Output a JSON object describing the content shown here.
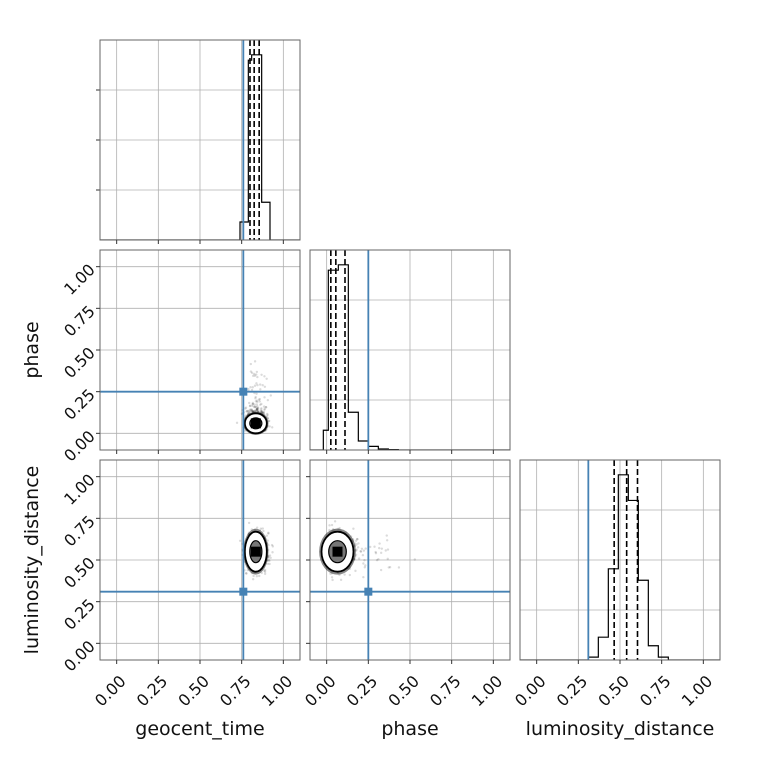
{
  "chart_data": {
    "type": "corner",
    "parameters": [
      "geocent_time",
      "phase",
      "luminosity_distance"
    ],
    "axis_labels": {
      "geocent_time": "geocent_time",
      "phase": "phase",
      "luminosity_distance": "luminosity_distance"
    },
    "range": [
      -0.1,
      1.1
    ],
    "ticks": [
      0.0,
      0.25,
      0.5,
      0.75,
      1.0
    ],
    "tick_labels": [
      "0.00",
      "0.25",
      "0.50",
      "0.75",
      "1.00"
    ],
    "truths": {
      "geocent_time": 0.76,
      "phase": 0.25,
      "luminosity_distance": 0.31
    },
    "quantiles": {
      "geocent_time": [
        0.8,
        0.825,
        0.855
      ],
      "phase": [
        0.025,
        0.055,
        0.11
      ],
      "luminosity_distance": [
        0.465,
        0.54,
        0.605
      ]
    },
    "histograms": {
      "geocent_time": {
        "edges": [
          -0.1,
          0.02,
          0.14,
          0.26,
          0.38,
          0.5,
          0.62,
          0.74,
          0.79,
          0.81,
          0.87,
          0.92,
          0.98,
          1.1
        ],
        "counts": [
          0,
          0,
          0,
          0,
          0,
          0,
          0,
          10,
          100,
          103,
          21,
          0,
          0
        ]
      },
      "phase": {
        "edges": [
          -0.1,
          -0.02,
          0.01,
          0.07,
          0.13,
          0.19,
          0.25,
          0.31,
          0.37,
          0.43,
          0.55,
          1.1
        ],
        "counts": [
          0,
          11,
          100,
          103,
          21,
          5,
          2,
          0.6,
          0.2,
          0,
          0
        ]
      },
      "luminosity_distance": {
        "edges": [
          -0.1,
          0.19,
          0.31,
          0.37,
          0.43,
          0.49,
          0.55,
          0.61,
          0.67,
          0.73,
          0.79,
          1.1
        ],
        "counts": [
          0,
          0,
          1,
          8,
          32,
          65,
          56,
          28,
          5,
          1,
          0
        ]
      }
    },
    "grid": true,
    "legend": "none"
  }
}
